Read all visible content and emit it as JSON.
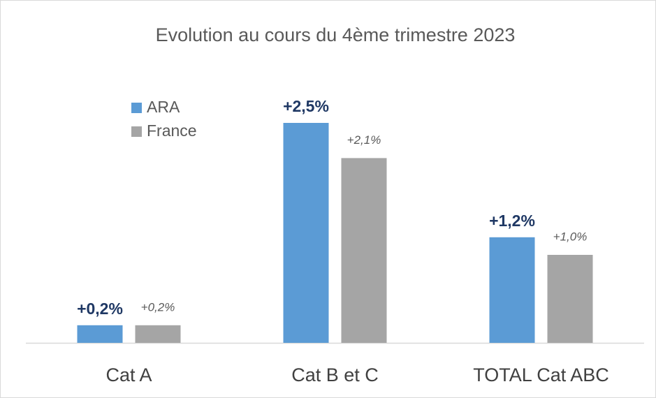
{
  "chart_data": {
    "type": "bar",
    "title": "Evolution au cours du 4ème trimestre 2023",
    "categories": [
      "Cat A",
      "Cat B et C",
      "TOTAL Cat ABC"
    ],
    "series": [
      {
        "name": "ARA",
        "color": "#5b9bd5",
        "values": [
          0.2,
          2.5,
          1.2
        ],
        "value_labels": [
          "+0,2%",
          "+2,5%",
          "+1,2%"
        ]
      },
      {
        "name": "France",
        "color": "#a5a5a5",
        "values": [
          0.2,
          2.1,
          1.0
        ],
        "value_labels": [
          "+0,2%",
          "+2,1%",
          "+1,0%"
        ]
      }
    ]
  }
}
